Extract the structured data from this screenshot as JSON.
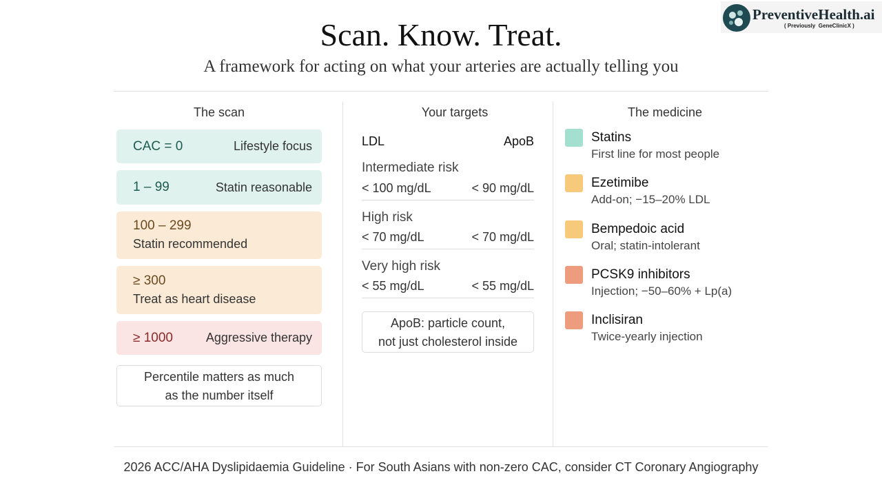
{
  "header": {
    "title": "Scan. Know. Treat.",
    "subtitle": "A framework for acting on what your arteries are actually telling you"
  },
  "logo": {
    "name": "PreventiveHealth.ai",
    "note": "( Previously  GeneClinicX )"
  },
  "scan": {
    "heading": "The scan",
    "tiers": [
      {
        "range": "CAC = 0",
        "label": "Lifestyle focus"
      },
      {
        "range": "1 – 99",
        "label": "Statin reasonable"
      },
      {
        "range": "100 – 299",
        "label": "Statin recommended"
      },
      {
        "range": "≥ 300",
        "label": "Treat as heart disease"
      },
      {
        "range": "≥ 1000",
        "label": "Aggressive therapy"
      }
    ],
    "note": [
      "Percentile matters as much",
      "as the number itself"
    ]
  },
  "targets": {
    "heading": "Your targets",
    "ldl_label": "LDL",
    "apob_label": "ApoB",
    "rows": [
      {
        "risk": "Intermediate risk",
        "ldl": "< 100 mg/dL",
        "apob": "< 90 mg/dL"
      },
      {
        "risk": "High risk",
        "ldl": "< 70 mg/dL",
        "apob": "< 70 mg/dL"
      },
      {
        "risk": "Very high risk",
        "ldl": "< 55 mg/dL",
        "apob": "< 55 mg/dL"
      }
    ],
    "note": [
      "ApoB: particle count,",
      "not just cholesterol inside"
    ]
  },
  "medicine": {
    "heading": "The medicine",
    "items": [
      {
        "name": "Statins",
        "detail": "First line for most people",
        "color": "#a3e0cf"
      },
      {
        "name": "Ezetimibe",
        "detail": "Add-on; −15–20% LDL",
        "color": "#f7c97a"
      },
      {
        "name": "Bempedoic acid",
        "detail": "Oral; statin-intolerant",
        "color": "#f7c97a"
      },
      {
        "name": "PCSK9 inhibitors",
        "detail": "Injection; −50–60% + Lp(a)",
        "color": "#ee9c7e"
      },
      {
        "name": "Inclisiran",
        "detail": "Twice-yearly injection",
        "color": "#ee9c7e"
      }
    ]
  },
  "footer": "2026 ACC/AHA Dyslipidaemia Guideline · For South Asians with non-zero CAC, consider CT Coronary Angiography"
}
